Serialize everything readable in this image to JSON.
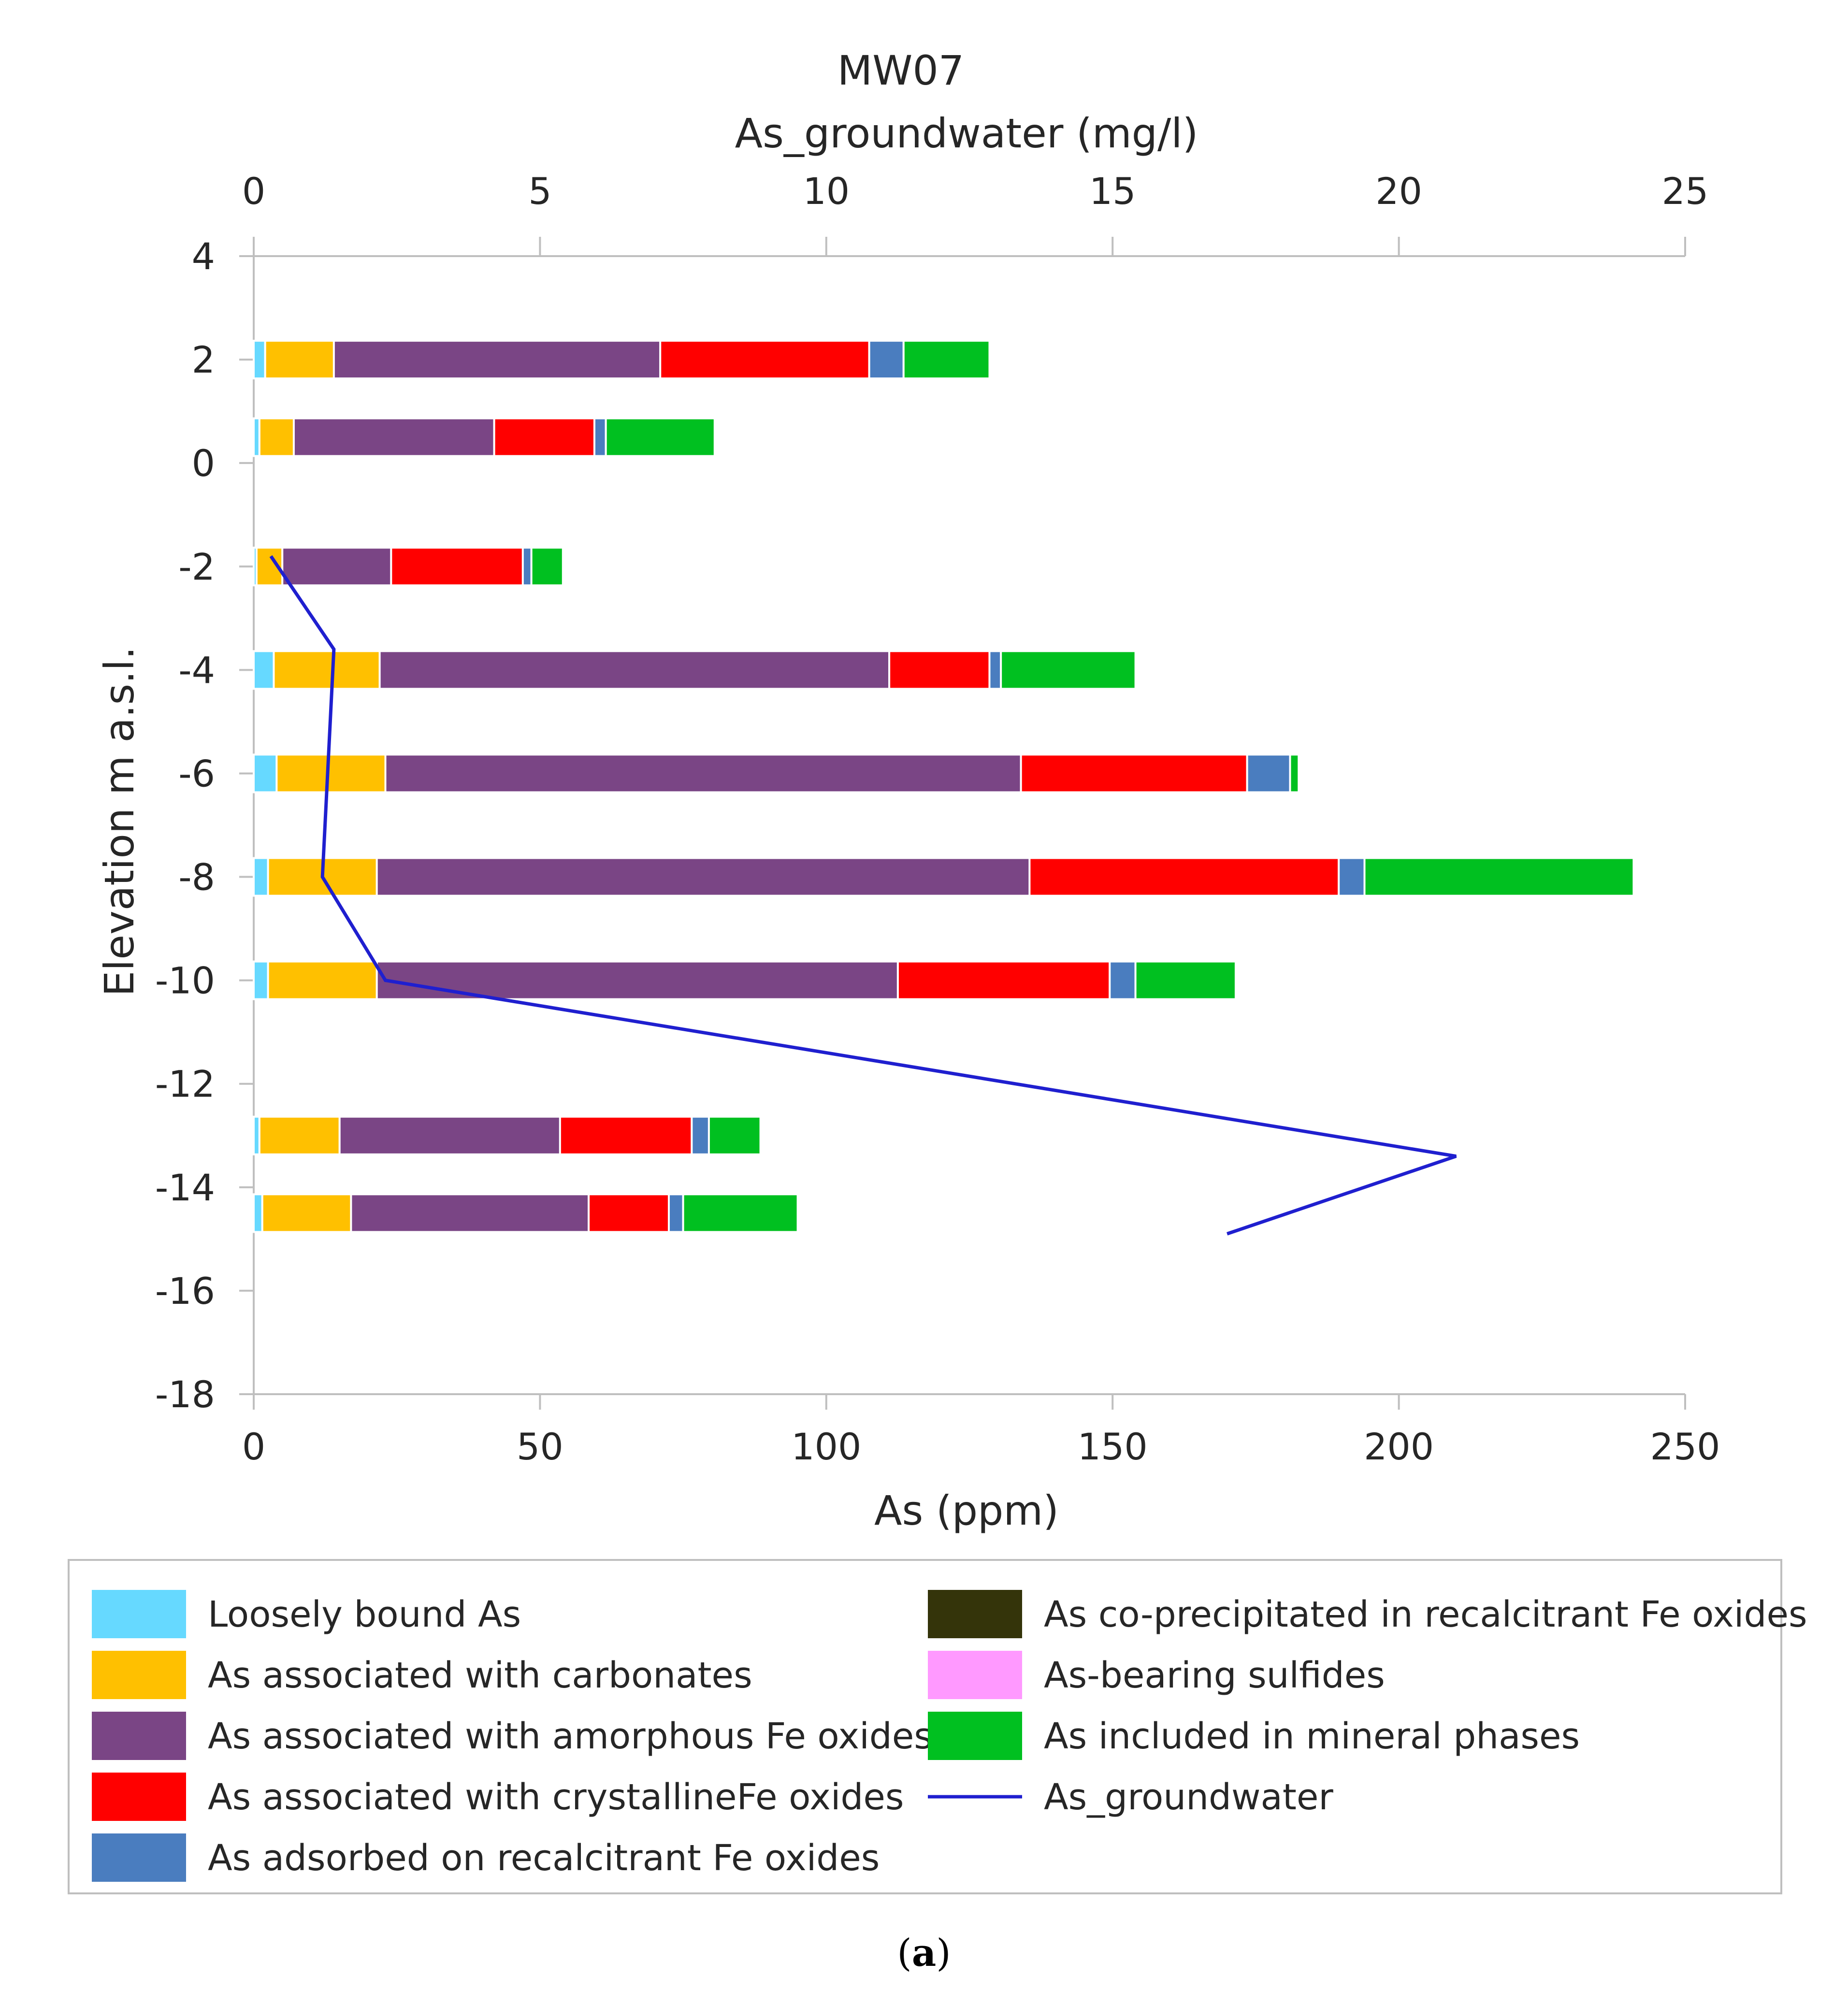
{
  "chart_data": {
    "type": "bar",
    "orientation": "horizontal",
    "stacked": true,
    "title": "MW07",
    "top_axis_label": "As_groundwater (mg/l)",
    "xlabel": "As (ppm)",
    "ylabel": "Elevation m a.s.l.",
    "caption_prefix": "(",
    "caption_bold": "a",
    "caption_suffix": ")",
    "xlim": [
      0,
      250
    ],
    "x_ticks": [
      "0",
      "50",
      "100",
      "150",
      "200",
      "250"
    ],
    "x2lim": [
      0,
      25
    ],
    "x2_ticks": [
      "0",
      "5",
      "10",
      "15",
      "20",
      "25"
    ],
    "ylim": [
      -18,
      4
    ],
    "y_ticks": [
      "4",
      "2",
      "0",
      "-2",
      "-4",
      "-6",
      "-8",
      "-10",
      "-12",
      "-14",
      "-16",
      "-18"
    ],
    "elevations": [
      2,
      0.5,
      -2,
      -4,
      -6,
      -8,
      -10,
      -13,
      -14.5
    ],
    "series": [
      {
        "name": "Loosely bound As",
        "color": "#66d9ff",
        "values": [
          2,
          1,
          0.5,
          3.5,
          4,
          2.5,
          2.5,
          1,
          1.5
        ]
      },
      {
        "name": "As associated with carbonates",
        "color": "#ffc000",
        "values": [
          12,
          6,
          4.5,
          18.5,
          19,
          19,
          19,
          14,
          15.5
        ]
      },
      {
        "name": "As associated with amorphous Fe oxides",
        "color": "#7a4585",
        "values": [
          57,
          35,
          19,
          89,
          111,
          114,
          91,
          38.5,
          41.5
        ]
      },
      {
        "name": "As associated with crystallineFe oxides",
        "color": "#ff0000",
        "values": [
          36.5,
          17.5,
          23,
          17.5,
          39.5,
          54,
          37,
          23,
          14
        ]
      },
      {
        "name": "As adsorbed on recalcitrant Fe oxides",
        "color": "#4a7dbf",
        "values": [
          6,
          2,
          1.5,
          2,
          7.5,
          4.5,
          4.5,
          3,
          2.5
        ]
      },
      {
        "name": "As co-precipitated in recalcitrant Fe oxides",
        "color": "#34340a",
        "values": [
          0,
          0,
          0,
          0,
          0,
          0,
          0,
          0,
          0
        ]
      },
      {
        "name": "As-bearing sulfides",
        "color": "#ff99ff",
        "values": [
          0,
          0,
          0,
          0,
          0,
          0,
          0,
          0,
          0
        ]
      },
      {
        "name": "As included in mineral phases",
        "color": "#00c020",
        "values": [
          15,
          19,
          5.5,
          23.5,
          1.5,
          47,
          17.5,
          9,
          20
        ]
      }
    ],
    "line_series": {
      "name": "As_groundwater",
      "color": "#1f1fcf",
      "axis": "top",
      "points": [
        [
          0.3,
          -1.8
        ],
        [
          1.4,
          -3.6
        ],
        [
          1.2,
          -8
        ],
        [
          2.3,
          -10
        ],
        [
          21,
          -13.4
        ],
        [
          17,
          -14.9
        ]
      ]
    },
    "legend_order": [
      0,
      5,
      1,
      6,
      2,
      7,
      3,
      "line",
      4
    ],
    "legend_position": "bottom"
  }
}
